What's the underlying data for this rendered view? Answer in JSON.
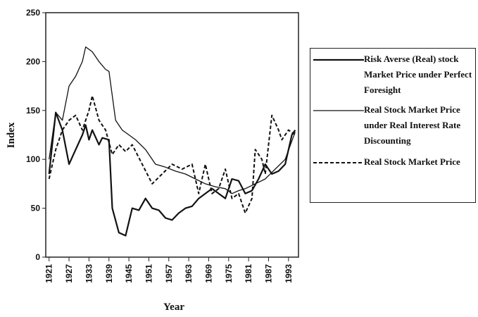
{
  "chart_data": {
    "type": "line",
    "xlabel": "Year",
    "ylabel": "Index",
    "xlim": [
      1920,
      1996
    ],
    "ylim": [
      0,
      250
    ],
    "xticks": [
      1921,
      1927,
      1933,
      1939,
      1945,
      1951,
      1957,
      1963,
      1969,
      1975,
      1981,
      1987,
      1993
    ],
    "yticks": [
      0,
      50,
      100,
      150,
      200,
      250
    ],
    "series": [
      {
        "name": "Risk Averse (Real) stock Market Price under Perfect Foresight",
        "color": "#111111",
        "style": "solid",
        "x": [
          1921,
          1923,
          1925,
          1927,
          1929,
          1931,
          1932,
          1933,
          1934,
          1936,
          1937,
          1939,
          1940,
          1942,
          1944,
          1946,
          1948,
          1950,
          1952,
          1954,
          1956,
          1958,
          1960,
          1962,
          1964,
          1966,
          1968,
          1970,
          1972,
          1974,
          1976,
          1978,
          1980,
          1982,
          1984,
          1986,
          1988,
          1990,
          1992,
          1994,
          1995
        ],
        "values": [
          85,
          148,
          130,
          95,
          110,
          125,
          135,
          120,
          130,
          115,
          122,
          120,
          50,
          25,
          22,
          50,
          48,
          60,
          50,
          48,
          40,
          38,
          45,
          50,
          52,
          60,
          65,
          70,
          65,
          60,
          80,
          78,
          65,
          68,
          80,
          95,
          85,
          88,
          95,
          125,
          130
        ]
      },
      {
        "name": "Real Stock Market Price under Real Interest Rate Discounting",
        "color": "#111111",
        "style": "thin",
        "x": [
          1921,
          1923,
          1925,
          1927,
          1929,
          1931,
          1932,
          1934,
          1936,
          1938,
          1939,
          1941,
          1943,
          1945,
          1947,
          1950,
          1953,
          1956,
          1959,
          1962,
          1965,
          1968,
          1971,
          1974,
          1976,
          1978,
          1980,
          1983,
          1986,
          1989,
          1992,
          1995
        ],
        "values": [
          100,
          148,
          140,
          175,
          185,
          200,
          215,
          210,
          200,
          192,
          190,
          140,
          130,
          125,
          120,
          110,
          95,
          92,
          88,
          85,
          80,
          75,
          72,
          70,
          65,
          68,
          70,
          75,
          80,
          90,
          100,
          128
        ]
      },
      {
        "name": "Real Stock Market Price",
        "color": "#111111",
        "style": "dashed",
        "x": [
          1921,
          1923,
          1925,
          1927,
          1929,
          1931,
          1933,
          1934,
          1936,
          1938,
          1940,
          1942,
          1944,
          1946,
          1949,
          1952,
          1955,
          1958,
          1961,
          1964,
          1966,
          1968,
          1970,
          1972,
          1974,
          1976,
          1978,
          1980,
          1982,
          1983,
          1985,
          1986,
          1988,
          1990,
          1991,
          1993,
          1995
        ],
        "values": [
          80,
          110,
          130,
          140,
          145,
          130,
          150,
          165,
          140,
          130,
          105,
          115,
          108,
          115,
          95,
          75,
          85,
          95,
          90,
          95,
          65,
          95,
          65,
          70,
          90,
          60,
          65,
          45,
          60,
          110,
          100,
          85,
          145,
          130,
          120,
          130,
          125
        ]
      }
    ]
  }
}
